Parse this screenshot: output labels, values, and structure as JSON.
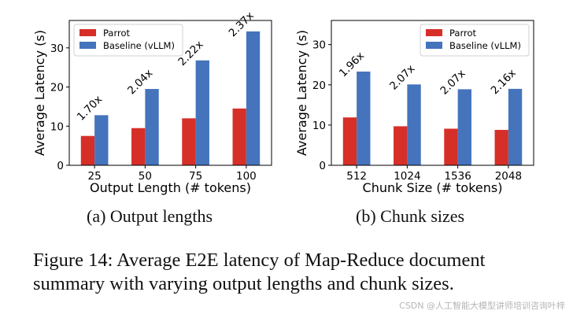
{
  "colors": {
    "parrot": "#d62f28",
    "baseline": "#4574bd"
  },
  "chart_data": [
    {
      "type": "bar",
      "ylabel": "Average Latency (s)",
      "xlabel": "Output Length (# tokens)",
      "categories": [
        "25",
        "50",
        "75",
        "100"
      ],
      "ylim": [
        0,
        37
      ],
      "yticks": [
        0,
        10,
        20,
        30
      ],
      "series": [
        {
          "name": "Parrot",
          "values": [
            7.5,
            9.5,
            12,
            14.5
          ]
        },
        {
          "name": "Baseline (vLLM)",
          "values": [
            12.8,
            19.5,
            26.8,
            34.2
          ]
        }
      ],
      "annotations": [
        "1.70x",
        "2.04x",
        "2.22x",
        "2.37x"
      ],
      "legend": "top-left",
      "subcaption": "(a) Output lengths"
    },
    {
      "type": "bar",
      "ylabel": "Average Latency (s)",
      "xlabel": "Chunk Size (# tokens)",
      "categories": [
        "512",
        "1024",
        "1536",
        "2048"
      ],
      "ylim": [
        0,
        36
      ],
      "yticks": [
        0,
        10,
        20,
        30
      ],
      "series": [
        {
          "name": "Parrot",
          "values": [
            11.9,
            9.7,
            9.1,
            8.8
          ]
        },
        {
          "name": "Baseline (vLLM)",
          "values": [
            23.3,
            20.1,
            18.9,
            19.0
          ]
        }
      ],
      "annotations": [
        "1.96x",
        "2.07x",
        "2.07x",
        "2.16x"
      ],
      "legend": "top-right",
      "subcaption": "(b) Chunk sizes"
    }
  ],
  "caption": "Figure 14: Average E2E latency of Map-Reduce document summary with varying output lengths and chunk sizes.",
  "watermark": "CSDN @人工智能大模型讲师培训咨询叶梓"
}
